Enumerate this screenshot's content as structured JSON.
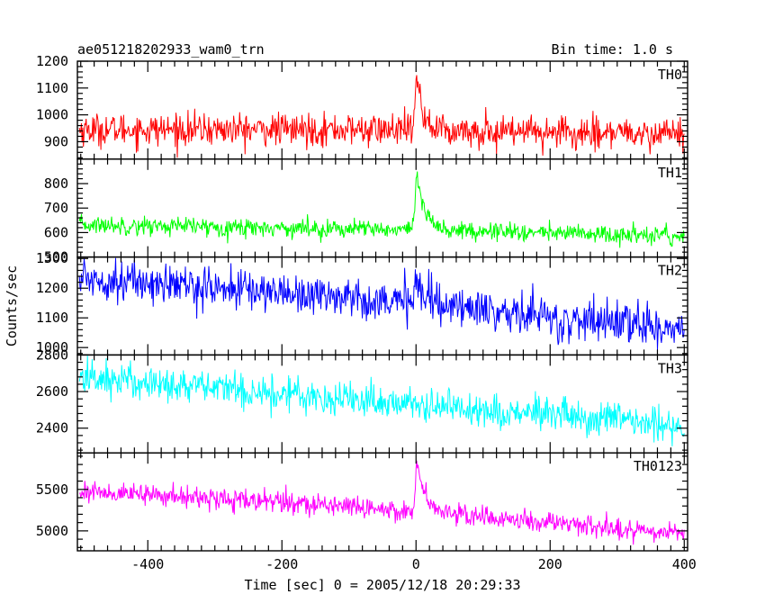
{
  "header": {
    "title": "ae051218202933_wam0_trn",
    "bin_time": "Bin time: 1.0 s"
  },
  "axis": {
    "xlabel": "Time [sec] 0 = 2005/12/18 20:29:33",
    "ylabel": "Counts/sec"
  },
  "chart_data": {
    "type": "line",
    "title": "ae051218202933_wam0_trn",
    "subtitle": "Bin time: 1.0 s",
    "xlabel": "Time [sec] 0 = 2005/12/18 20:29:33",
    "ylabel": "Counts/sec",
    "xlim": [
      -505,
      405
    ],
    "xticks": [
      -400,
      -200,
      0,
      200,
      400
    ],
    "x_step": 1.0,
    "panels": [
      {
        "name": "TH0",
        "color": "#ff0000",
        "ylim": [
          835,
          1200
        ],
        "yticks": [
          900,
          1000,
          1100,
          1200
        ],
        "baseline": [
          [
            -505,
            945
          ],
          [
            -100,
            945
          ],
          [
            400,
            930
          ]
        ],
        "noise_amplitude": 40,
        "burst": {
          "x": 0,
          "peak": 1200,
          "decay": 10
        }
      },
      {
        "name": "TH1",
        "color": "#00ff00",
        "ylim": [
          500,
          900
        ],
        "yticks": [
          500,
          600,
          700,
          800
        ],
        "baseline": [
          [
            -505,
            632
          ],
          [
            -100,
            615
          ],
          [
            400,
            585
          ]
        ],
        "noise_amplitude": 25,
        "burst": {
          "x": 0,
          "peak": 890,
          "decay": 12
        }
      },
      {
        "name": "TH2",
        "color": "#0000ff",
        "ylim": [
          975,
          1305
        ],
        "yticks": [
          1000,
          1100,
          1200,
          1300
        ],
        "baseline": [
          [
            -505,
            1235
          ],
          [
            -100,
            1170
          ],
          [
            400,
            1060
          ]
        ],
        "noise_amplitude": 45,
        "burst": {
          "x": 0,
          "peak": 1300,
          "decay": 8
        }
      },
      {
        "name": "TH3",
        "color": "#00ffff",
        "ylim": [
          2265,
          2800
        ],
        "yticks": [
          2400,
          2600,
          2800
        ],
        "baseline": [
          [
            -505,
            2680
          ],
          [
            -100,
            2560
          ],
          [
            400,
            2410
          ]
        ],
        "noise_amplitude": 65,
        "burst": null
      },
      {
        "name": "TH0123",
        "color": "#ff00ff",
        "ylim": [
          4760,
          5940
        ],
        "yticks": [
          5000,
          5500
        ],
        "baseline": [
          [
            -505,
            5480
          ],
          [
            -100,
            5300
          ],
          [
            400,
            4960
          ]
        ],
        "noise_amplitude": 85,
        "burst": {
          "x": 0,
          "peak": 5930,
          "decay": 12
        }
      }
    ],
    "grid": false,
    "legend": "none"
  }
}
